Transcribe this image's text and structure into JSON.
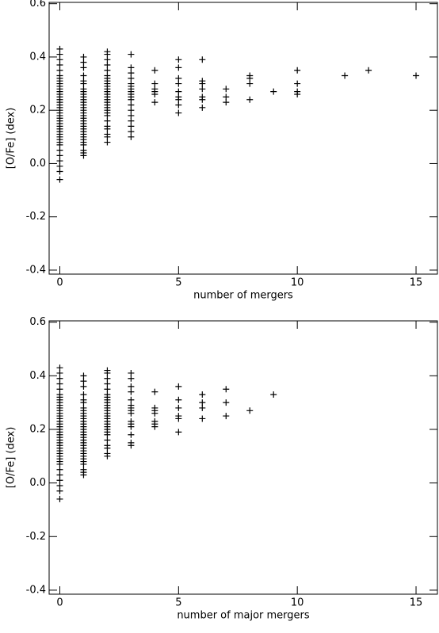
{
  "chart_data": [
    {
      "type": "scatter",
      "xlabel": "number of mergers",
      "ylabel": "[O/Fe] (dex)",
      "xlim": [
        -0.45,
        15.9
      ],
      "ylim": [
        -0.415,
        0.605
      ],
      "xticks": [
        0,
        5,
        10,
        15
      ],
      "yticks": [
        -0.4,
        -0.2,
        {
          "value": 0,
          "label": "0.0"
        },
        0.2,
        0.4,
        0.6
      ],
      "color": "#000000",
      "x": [
        0,
        0,
        0,
        0,
        0,
        0,
        0,
        0,
        0,
        0,
        0,
        0,
        0,
        0,
        0,
        0,
        0,
        0,
        0,
        0,
        0,
        0,
        0,
        0,
        0,
        0,
        0,
        0,
        0,
        0,
        0,
        0,
        0,
        0,
        0,
        0,
        0,
        0,
        1,
        1,
        1,
        1,
        1,
        1,
        1,
        1,
        1,
        1,
        1,
        1,
        1,
        1,
        1,
        1,
        1,
        1,
        1,
        1,
        1,
        1,
        1,
        1,
        1,
        1,
        1,
        1,
        1,
        1,
        1,
        2,
        2,
        2,
        2,
        2,
        2,
        2,
        2,
        2,
        2,
        2,
        2,
        2,
        2,
        2,
        2,
        2,
        2,
        2,
        2,
        2,
        2,
        2,
        2,
        2,
        2,
        2,
        3,
        3,
        3,
        3,
        3,
        3,
        3,
        3,
        3,
        3,
        3,
        3,
        3,
        3,
        3,
        3,
        3,
        3,
        4,
        4,
        4,
        4,
        4,
        4,
        5,
        5,
        5,
        5,
        5,
        5,
        5,
        5,
        5,
        6,
        6,
        6,
        6,
        6,
        6,
        6,
        7,
        7,
        7,
        8,
        8,
        8,
        8,
        9,
        10,
        10,
        10,
        10,
        12,
        13,
        15
      ],
      "values": [
        0.43,
        0.41,
        0.39,
        0.37,
        0.35,
        0.33,
        0.32,
        0.31,
        0.3,
        0.29,
        0.28,
        0.27,
        0.26,
        0.25,
        0.24,
        0.23,
        0.22,
        0.21,
        0.2,
        0.19,
        0.18,
        0.17,
        0.16,
        0.15,
        0.14,
        0.13,
        0.12,
        0.11,
        0.1,
        0.09,
        0.08,
        0.07,
        0.05,
        0.03,
        0.01,
        -0.01,
        -0.03,
        -0.06,
        0.4,
        0.38,
        0.36,
        0.33,
        0.31,
        0.3,
        0.28,
        0.27,
        0.26,
        0.25,
        0.24,
        0.23,
        0.22,
        0.21,
        0.2,
        0.19,
        0.18,
        0.17,
        0.16,
        0.15,
        0.14,
        0.13,
        0.12,
        0.11,
        0.1,
        0.09,
        0.08,
        0.07,
        0.05,
        0.04,
        0.03,
        0.42,
        0.41,
        0.39,
        0.37,
        0.35,
        0.33,
        0.32,
        0.31,
        0.3,
        0.29,
        0.28,
        0.27,
        0.26,
        0.25,
        0.24,
        0.23,
        0.22,
        0.21,
        0.2,
        0.19,
        0.18,
        0.16,
        0.14,
        0.13,
        0.11,
        0.1,
        0.08,
        0.41,
        0.36,
        0.34,
        0.32,
        0.3,
        0.29,
        0.28,
        0.27,
        0.26,
        0.25,
        0.24,
        0.22,
        0.2,
        0.18,
        0.16,
        0.14,
        0.12,
        0.1,
        0.35,
        0.3,
        0.28,
        0.27,
        0.26,
        0.23,
        0.39,
        0.36,
        0.32,
        0.3,
        0.27,
        0.25,
        0.24,
        0.22,
        0.19,
        0.39,
        0.31,
        0.3,
        0.28,
        0.25,
        0.24,
        0.21,
        0.28,
        0.25,
        0.23,
        0.33,
        0.32,
        0.3,
        0.24,
        0.27,
        0.35,
        0.3,
        0.27,
        0.26,
        0.33,
        0.35,
        0.33
      ]
    },
    {
      "type": "scatter",
      "xlabel": "number of major mergers",
      "ylabel": "[O/Fe] (dex)",
      "xlim": [
        -0.45,
        15.9
      ],
      "ylim": [
        -0.415,
        0.605
      ],
      "xticks": [
        0,
        5,
        10,
        15
      ],
      "yticks": [
        -0.4,
        -0.2,
        {
          "value": 0,
          "label": "0.0"
        },
        0.2,
        0.4,
        0.6
      ],
      "color": "#000000",
      "x": [
        0,
        0,
        0,
        0,
        0,
        0,
        0,
        0,
        0,
        0,
        0,
        0,
        0,
        0,
        0,
        0,
        0,
        0,
        0,
        0,
        0,
        0,
        0,
        0,
        0,
        0,
        0,
        0,
        0,
        0,
        0,
        0,
        0,
        0,
        0,
        0,
        0,
        0,
        1,
        1,
        1,
        1,
        1,
        1,
        1,
        1,
        1,
        1,
        1,
        1,
        1,
        1,
        1,
        1,
        1,
        1,
        1,
        1,
        1,
        1,
        1,
        1,
        1,
        1,
        1,
        1,
        1,
        1,
        1,
        2,
        2,
        2,
        2,
        2,
        2,
        2,
        2,
        2,
        2,
        2,
        2,
        2,
        2,
        2,
        2,
        2,
        2,
        2,
        2,
        2,
        2,
        2,
        2,
        2,
        2,
        3,
        3,
        3,
        3,
        3,
        3,
        3,
        3,
        3,
        3,
        3,
        3,
        3,
        3,
        3,
        4,
        4,
        4,
        4,
        4,
        4,
        4,
        5,
        5,
        5,
        5,
        5,
        5,
        6,
        6,
        6,
        6,
        7,
        7,
        7,
        8,
        9
      ],
      "values": [
        0.43,
        0.41,
        0.39,
        0.37,
        0.35,
        0.33,
        0.32,
        0.31,
        0.3,
        0.29,
        0.28,
        0.27,
        0.26,
        0.25,
        0.24,
        0.23,
        0.22,
        0.21,
        0.2,
        0.19,
        0.18,
        0.17,
        0.16,
        0.15,
        0.14,
        0.13,
        0.12,
        0.11,
        0.1,
        0.09,
        0.08,
        0.07,
        0.05,
        0.03,
        0.01,
        -0.01,
        -0.03,
        -0.06,
        0.4,
        0.38,
        0.36,
        0.33,
        0.31,
        0.3,
        0.28,
        0.27,
        0.26,
        0.25,
        0.24,
        0.23,
        0.22,
        0.21,
        0.2,
        0.19,
        0.18,
        0.17,
        0.16,
        0.15,
        0.14,
        0.13,
        0.12,
        0.11,
        0.1,
        0.09,
        0.08,
        0.07,
        0.05,
        0.04,
        0.03,
        0.42,
        0.41,
        0.39,
        0.37,
        0.35,
        0.33,
        0.32,
        0.31,
        0.3,
        0.29,
        0.28,
        0.27,
        0.26,
        0.25,
        0.24,
        0.23,
        0.22,
        0.21,
        0.2,
        0.19,
        0.18,
        0.16,
        0.14,
        0.13,
        0.11,
        0.1,
        0.41,
        0.39,
        0.36,
        0.34,
        0.31,
        0.29,
        0.28,
        0.27,
        0.26,
        0.23,
        0.22,
        0.21,
        0.18,
        0.15,
        0.14,
        0.34,
        0.28,
        0.27,
        0.26,
        0.23,
        0.22,
        0.21,
        0.36,
        0.31,
        0.28,
        0.25,
        0.24,
        0.19,
        0.33,
        0.3,
        0.28,
        0.24,
        0.35,
        0.3,
        0.25,
        0.27,
        0.33
      ]
    }
  ]
}
